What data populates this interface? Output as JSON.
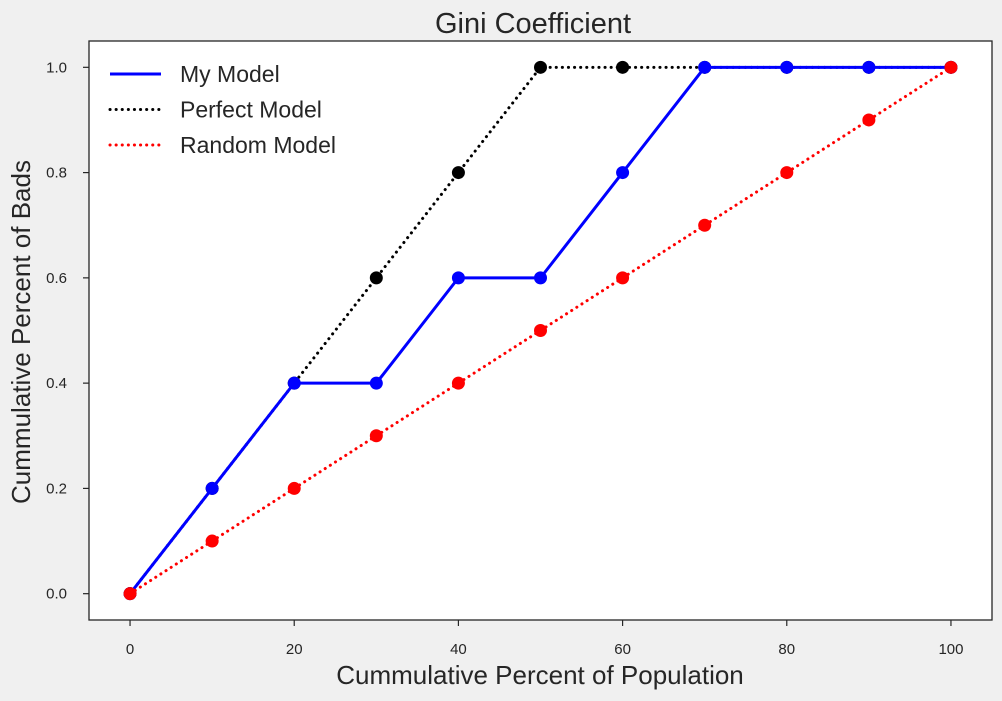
{
  "chart_data": {
    "type": "line",
    "title": "Gini Coefficient",
    "xlabel": "Cummulative Percent of Population",
    "ylabel": "Cummulative Percent of Bads",
    "xlim": [
      -5,
      105
    ],
    "ylim": [
      -0.05,
      1.05
    ],
    "xticks": [
      0,
      20,
      40,
      60,
      80,
      100
    ],
    "yticks": [
      0.0,
      0.2,
      0.4,
      0.6,
      0.8,
      1.0
    ],
    "xtick_labels": [
      "0",
      "20",
      "40",
      "60",
      "80",
      "100"
    ],
    "ytick_labels": [
      "0.0",
      "0.2",
      "0.4",
      "0.6",
      "0.8",
      "1.0"
    ],
    "grid": false,
    "legend_position": "top-left",
    "x": [
      0,
      10,
      20,
      30,
      40,
      50,
      60,
      70,
      80,
      90,
      100
    ],
    "series": [
      {
        "name": "Perfect Model",
        "style": "dotted",
        "color": "#000000",
        "values": [
          0.0,
          0.2,
          0.4,
          0.6,
          0.8,
          1.0,
          1.0,
          1.0,
          1.0,
          1.0,
          1.0
        ]
      },
      {
        "name": "My Model",
        "style": "solid",
        "color": "#0000ff",
        "values": [
          0.0,
          0.2,
          0.4,
          0.4,
          0.6,
          0.6,
          0.8,
          1.0,
          1.0,
          1.0,
          1.0
        ]
      },
      {
        "name": "Random Model",
        "style": "dotted",
        "color": "#ff0000",
        "values": [
          0.0,
          0.1,
          0.2,
          0.3,
          0.4,
          0.5,
          0.6,
          0.7,
          0.8,
          0.9,
          1.0
        ]
      }
    ],
    "legend_order": [
      "My Model",
      "Perfect Model",
      "Random Model"
    ]
  }
}
